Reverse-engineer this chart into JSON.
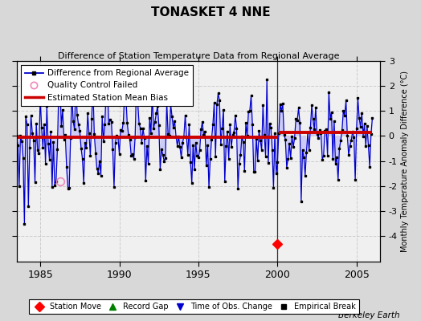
{
  "title": "TONASKET 4 NNE",
  "subtitle": "Difference of Station Temperature Data from Regional Average",
  "ylabel_right": "Monthly Temperature Anomaly Difference (°C)",
  "xlim": [
    1983.5,
    2006.5
  ],
  "ylim": [
    -5,
    3
  ],
  "yticks_right": [
    -4,
    -3,
    -2,
    -1,
    0,
    1,
    2,
    3
  ],
  "xticks": [
    1985,
    1990,
    1995,
    2000,
    2005
  ],
  "outer_bg": "#d8d8d8",
  "plot_bg": "#f0f0f0",
  "line_color": "#0000cc",
  "fill_color": "#aaaaff",
  "bias_color": "#cc0000",
  "bias_pre2000": -0.05,
  "bias_post2000": 0.15,
  "break_year": 2000.0,
  "station_move_year": 2000.0,
  "qc_fail_year": 1986.25,
  "qc_fail_value": -1.8,
  "station_move_y": -4.3,
  "watermark": "Berkeley Earth",
  "grid_color": "#cccccc",
  "legend_fontsize": 7.5,
  "title_fontsize": 11,
  "subtitle_fontsize": 8
}
